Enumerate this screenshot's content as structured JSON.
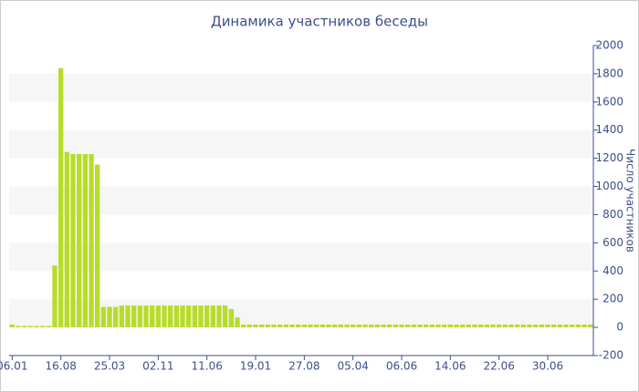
{
  "chart_data": {
    "type": "bar",
    "title": "Динамика участников беседы",
    "y_label": "Число участников",
    "color": "#b8dc2a",
    "categories": [
      "06.01",
      null,
      null,
      null,
      null,
      null,
      null,
      null,
      "16.08",
      null,
      null,
      null,
      null,
      null,
      null,
      null,
      "25.03",
      null,
      null,
      null,
      null,
      null,
      null,
      null,
      "02.11",
      null,
      null,
      null,
      null,
      null,
      null,
      null,
      "11.06",
      null,
      null,
      null,
      null,
      null,
      null,
      null,
      "19.01",
      null,
      null,
      null,
      null,
      null,
      null,
      null,
      "27.08",
      null,
      null,
      null,
      null,
      null,
      null,
      null,
      "05.04",
      null,
      null,
      null,
      null,
      null,
      null,
      null,
      "06.06",
      null,
      null,
      null,
      null,
      null,
      null,
      null,
      "14.06",
      null,
      null,
      null,
      null,
      null,
      null,
      null,
      "22.06",
      null,
      null,
      null,
      null,
      null,
      null,
      null,
      "30.06",
      null,
      null,
      null,
      null,
      null,
      null,
      null
    ],
    "values": [
      20,
      10,
      10,
      10,
      10,
      10,
      10,
      440,
      1840,
      1245,
      1230,
      1230,
      1230,
      1230,
      1155,
      145,
      145,
      145,
      155,
      155,
      155,
      155,
      155,
      155,
      155,
      155,
      155,
      155,
      155,
      155,
      155,
      155,
      155,
      155,
      155,
      155,
      130,
      70,
      20,
      20,
      20,
      20,
      20,
      20,
      20,
      20,
      20,
      20,
      20,
      20,
      20,
      20,
      20,
      20,
      20,
      20,
      20,
      20,
      20,
      20,
      20,
      20,
      20,
      20,
      20,
      20,
      20,
      20,
      20,
      20,
      20,
      20,
      20,
      20,
      20,
      20,
      20,
      20,
      20,
      20,
      20,
      20,
      20,
      20,
      20,
      20,
      20,
      20,
      20,
      20,
      20,
      20,
      20,
      20,
      20,
      20
    ],
    "ylim": [
      -200,
      2000
    ],
    "yticks": [
      -200,
      0,
      200,
      400,
      600,
      800,
      1000,
      1200,
      1400,
      1600,
      1800,
      2000
    ],
    "grid": true
  }
}
